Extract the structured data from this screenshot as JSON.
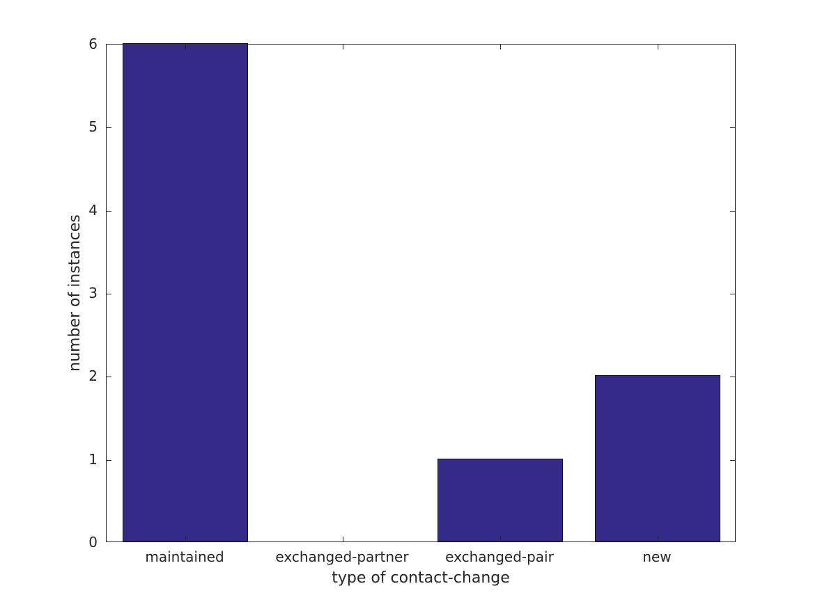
{
  "chart_data": {
    "type": "bar",
    "categories": [
      "maintained",
      "exchanged-partner",
      "exchanged-pair",
      "new"
    ],
    "values": [
      6,
      0,
      1,
      2
    ],
    "title": "",
    "xlabel": "type of contact-change",
    "ylabel": "number of instances",
    "ylim": [
      0,
      6
    ],
    "yticks": [
      0,
      1,
      2,
      3,
      4,
      5,
      6
    ],
    "ytick_labels": [
      "0",
      "1",
      "2",
      "3",
      "4",
      "5",
      "6"
    ],
    "bar_width_ratio": 0.8,
    "bar_color": "#352a87",
    "bar_edge_color": "#141414",
    "axis_color": "#262626",
    "background_color": "#ffffff",
    "grid": false,
    "legend_position": "none",
    "box": true,
    "tick_direction": "in"
  }
}
